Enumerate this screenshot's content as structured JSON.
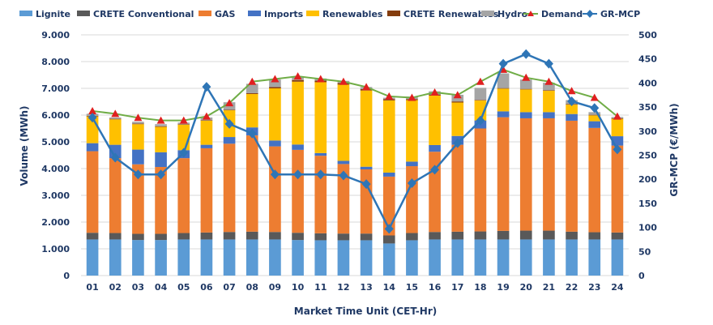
{
  "chart_data": {
    "type": "bar",
    "stacked": true,
    "title": "",
    "xlabel": "Market Time Unit (CET-Hr)",
    "ylabel": "Volume (MWh)",
    "y2label": "GR-MCP (€/MWh)",
    "ylim": [
      0,
      9000
    ],
    "y2lim": [
      0,
      500
    ],
    "yticks": [
      "0",
      "1.000",
      "2.000",
      "3.000",
      "4.000",
      "5.000",
      "6.000",
      "7.000",
      "8.000",
      "9.000"
    ],
    "y2ticks": [
      "0",
      "50",
      "100",
      "150",
      "200",
      "250",
      "300",
      "350",
      "400",
      "450",
      "500"
    ],
    "categories": [
      "01",
      "02",
      "03",
      "04",
      "05",
      "06",
      "07",
      "08",
      "09",
      "10",
      "11",
      "12",
      "13",
      "14",
      "15",
      "16",
      "17",
      "18",
      "19",
      "20",
      "21",
      "22",
      "23",
      "24"
    ],
    "series": [
      {
        "name": "Lignite",
        "color": "#5b9bd5",
        "values": [
          1350,
          1350,
          1330,
          1330,
          1350,
          1350,
          1350,
          1350,
          1350,
          1330,
          1320,
          1320,
          1320,
          1200,
          1320,
          1350,
          1350,
          1350,
          1350,
          1350,
          1350,
          1350,
          1350,
          1350
        ]
      },
      {
        "name": "CRETE Conventional",
        "color": "#595959",
        "values": [
          250,
          240,
          230,
          230,
          240,
          260,
          280,
          290,
          280,
          270,
          260,
          250,
          250,
          300,
          270,
          280,
          290,
          300,
          320,
          330,
          330,
          290,
          270,
          260
        ]
      },
      {
        "name": "GAS",
        "color": "#ed7d31",
        "values": [
          3050,
          2800,
          2600,
          2500,
          2800,
          3150,
          3300,
          3600,
          3200,
          3100,
          2900,
          2600,
          2400,
          2200,
          2500,
          3000,
          3250,
          3850,
          4250,
          4200,
          4200,
          4150,
          3900,
          3250
        ]
      },
      {
        "name": "Imports",
        "color": "#4472c4",
        "values": [
          300,
          500,
          550,
          550,
          300,
          130,
          250,
          300,
          220,
          200,
          100,
          120,
          100,
          150,
          170,
          250,
          330,
          300,
          220,
          230,
          230,
          250,
          250,
          350
        ]
      },
      {
        "name": "Renewables",
        "color": "#ffc000",
        "values": [
          1000,
          950,
          950,
          950,
          950,
          900,
          1000,
          1250,
          1950,
          2350,
          2650,
          2850,
          2850,
          2700,
          2300,
          1850,
          1250,
          750,
          850,
          850,
          800,
          350,
          220,
          650
        ]
      },
      {
        "name": "CRETE Renewables",
        "color": "#843c0c",
        "values": [
          20,
          20,
          20,
          20,
          20,
          20,
          20,
          30,
          50,
          60,
          60,
          60,
          50,
          50,
          40,
          40,
          40,
          20,
          20,
          20,
          20,
          20,
          20,
          20
        ]
      },
      {
        "name": "Hydro",
        "color": "#a5a5a5",
        "values": [
          80,
          50,
          70,
          80,
          60,
          100,
          280,
          350,
          280,
          100,
          80,
          80,
          80,
          50,
          90,
          120,
          250,
          450,
          550,
          350,
          280,
          150,
          100,
          50
        ]
      }
    ],
    "lines": [
      {
        "name": "Demand",
        "color": "#70ad47",
        "marker": "triangle",
        "axis": "left",
        "values": [
          6150,
          6050,
          5900,
          5800,
          5800,
          5950,
          6450,
          7250,
          7350,
          7450,
          7350,
          7250,
          7050,
          6700,
          6650,
          6850,
          6750,
          7250,
          7700,
          7400,
          7250,
          6900,
          6650,
          5950
        ]
      },
      {
        "name": "GR-MCP",
        "color": "#2e75b6",
        "marker": "diamond",
        "axis": "right",
        "values": [
          328,
          245,
          210,
          210,
          255,
          392,
          315,
          295,
          210,
          210,
          210,
          208,
          190,
          97,
          192,
          220,
          275,
          322,
          440,
          460,
          440,
          362,
          348,
          262
        ]
      }
    ],
    "legend": {
      "position": "top",
      "items": [
        "Lignite",
        "CRETE Conventional",
        "GAS",
        "Imports",
        "Renewables",
        "CRETE Renewables",
        "Hydro",
        "Demand",
        "GR-MCP"
      ]
    }
  }
}
